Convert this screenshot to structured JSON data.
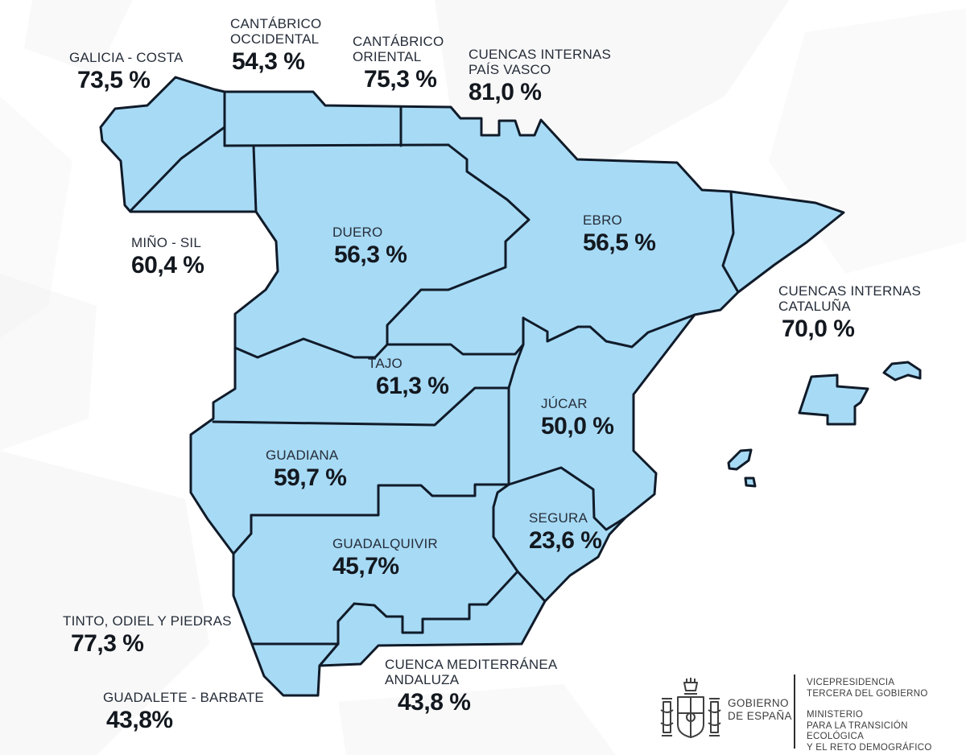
{
  "map": {
    "description": "Stylized low-poly map of Spain with river basin districts and reservoir fill percentages",
    "basins": [
      {
        "id": "galicia_costa",
        "lines": [
          "GALICIA - COSTA"
        ],
        "value": "73,5 %"
      },
      {
        "id": "cantabrico_occidental",
        "lines": [
          "CANTÁBRICO",
          "OCCIDENTAL"
        ],
        "value": "54,3 %"
      },
      {
        "id": "cantabrico_oriental",
        "lines": [
          "CANTÁBRICO",
          "ORIENTAL"
        ],
        "value": "75,3 %"
      },
      {
        "id": "cuencas_internas_pais_vasco",
        "lines": [
          "CUENCAS INTERNAS",
          "PAÍS VASCO"
        ],
        "value": "81,0 %"
      },
      {
        "id": "mino_sil",
        "lines": [
          "MIÑO - SIL"
        ],
        "value": "60,4 %"
      },
      {
        "id": "duero",
        "lines": [
          "DUERO"
        ],
        "value": "56,3 %"
      },
      {
        "id": "ebro",
        "lines": [
          "EBRO"
        ],
        "value": "56,5 %"
      },
      {
        "id": "cuencas_internas_cataluna",
        "lines": [
          "CUENCAS INTERNAS",
          "CATALUÑA"
        ],
        "value": "70,0 %"
      },
      {
        "id": "tajo",
        "lines": [
          "TAJO"
        ],
        "value": "61,3 %"
      },
      {
        "id": "jucar",
        "lines": [
          "JÚCAR"
        ],
        "value": "50,0 %"
      },
      {
        "id": "guadiana",
        "lines": [
          "GUADIANA"
        ],
        "value": "59,7 %"
      },
      {
        "id": "segura",
        "lines": [
          "SEGURA"
        ],
        "value": "23,6 %"
      },
      {
        "id": "guadalquivir",
        "lines": [
          "GUADALQUIVIR"
        ],
        "value": "45,7%"
      },
      {
        "id": "tinto_odiel_piedras",
        "lines": [
          "TINTO, ODIEL Y PIEDRAS"
        ],
        "value": "77,3 %"
      },
      {
        "id": "guadalete_barbate",
        "lines": [
          "GUADALETE - BARBATE"
        ],
        "value": "43,8%"
      },
      {
        "id": "cuenca_mediterranea_andaluza",
        "lines": [
          "CUENCA MEDITERRÁNEA",
          "ANDALUZA"
        ],
        "value": "43,8 %"
      }
    ]
  },
  "footer": {
    "coat_of_arms_icon": "spain-coat-of-arms",
    "government": {
      "line1": "GOBIERNO",
      "line2": "DE ESPAÑA"
    },
    "vicepresidency": [
      "VICEPRESIDENCIA",
      "TERCERA DEL GOBIERNO"
    ],
    "ministry": [
      "MINISTERIO",
      "PARA LA TRANSICIÓN ECOLÓGICA",
      "Y EL RETO DEMOGRÁFICO"
    ]
  },
  "colors": {
    "map_fill": "#a7daf5",
    "map_border": "#101b29",
    "label_name": "#262e3a",
    "label_value": "#13181f",
    "background": "#ffffff",
    "watermark": "#f3f3f3"
  }
}
